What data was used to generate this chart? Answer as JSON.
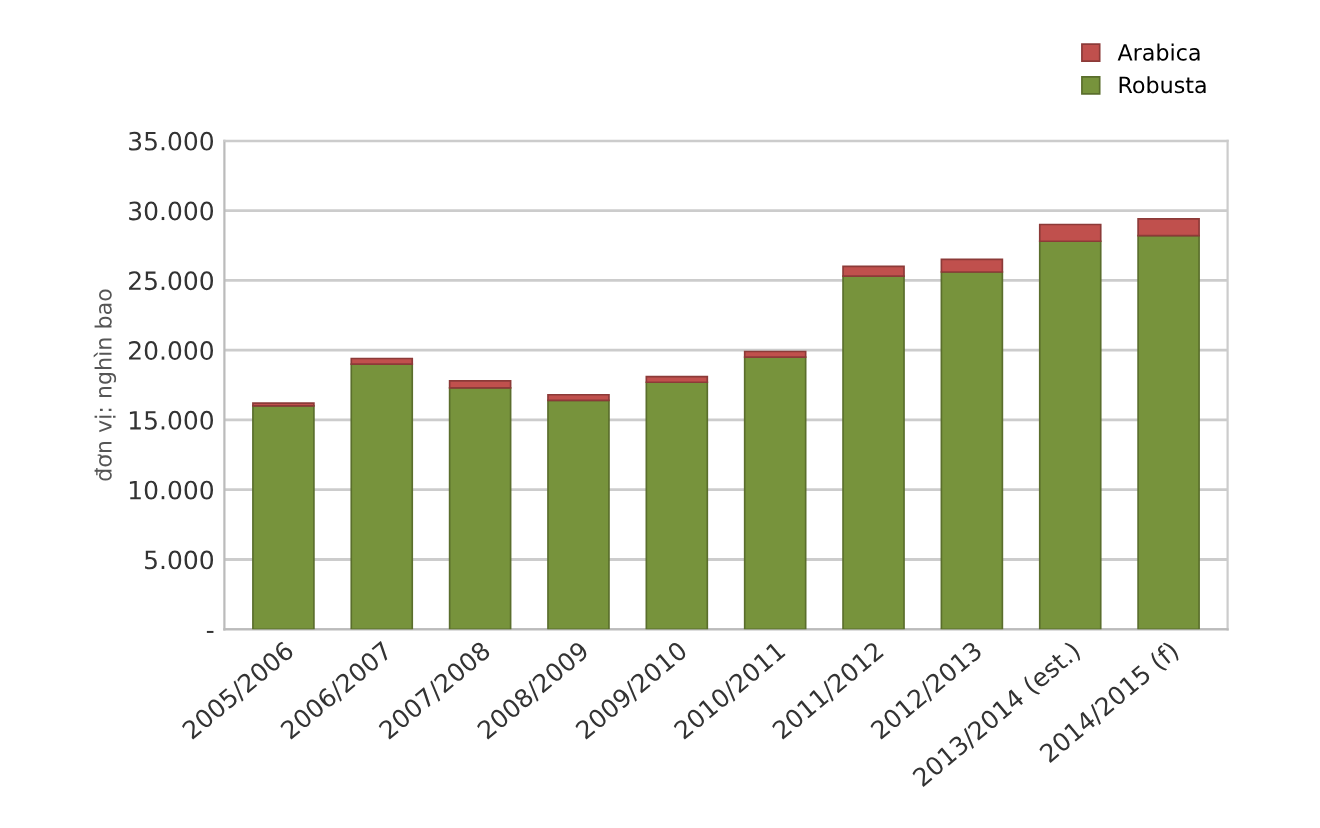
{
  "chart_data": {
    "type": "bar",
    "stacked": true,
    "ylabel": "đơn vị: nghìn bao",
    "categories": [
      "2005/2006",
      "2006/2007",
      "2007/2008",
      "2008/2009",
      "2009/2010",
      "2010/2011",
      "2011/2012",
      "2012/2013",
      "2013/2014 (est.)",
      "2014/2015 (f)"
    ],
    "series": [
      {
        "name": "Robusta",
        "color": "#77933c",
        "values": [
          16000,
          19000,
          17300,
          16400,
          17700,
          19500,
          25300,
          25600,
          27800,
          28200
        ]
      },
      {
        "name": "Arabica",
        "color": "#c0504d",
        "values": [
          200,
          400,
          500,
          400,
          400,
          400,
          700,
          900,
          1200,
          1200
        ]
      }
    ],
    "ylim": [
      0,
      35000
    ],
    "yticks": [
      {
        "value": 0,
        "label": "-"
      },
      {
        "value": 5000,
        "label": "5.000"
      },
      {
        "value": 10000,
        "label": "10.000"
      },
      {
        "value": 15000,
        "label": "15.000"
      },
      {
        "value": 20000,
        "label": "20.000"
      },
      {
        "value": 25000,
        "label": "25.000"
      },
      {
        "value": 30000,
        "label": "30.000"
      },
      {
        "value": 35000,
        "label": "35.000"
      }
    ],
    "grid": "y",
    "legend": "top right"
  }
}
